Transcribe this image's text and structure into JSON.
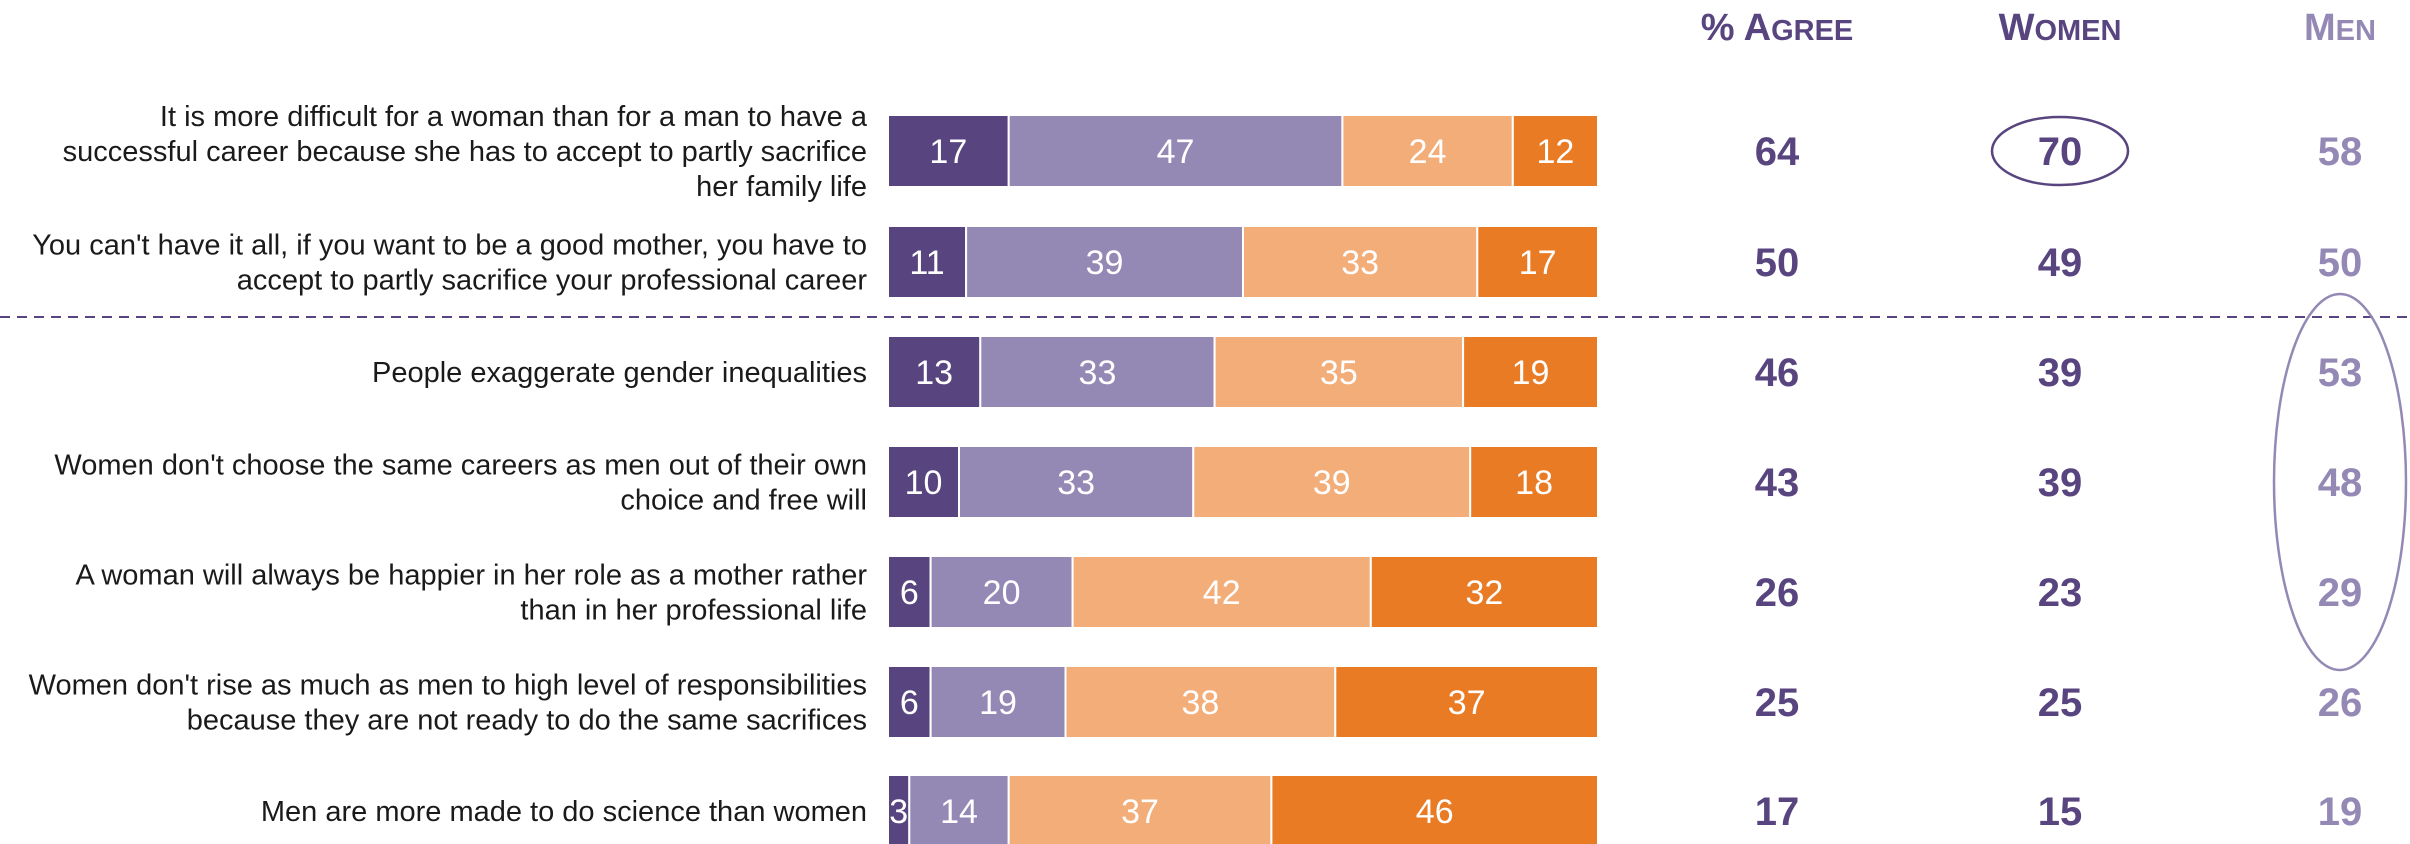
{
  "chart_data": {
    "type": "bar",
    "stacked": true,
    "orientation": "horizontal",
    "categories": [
      "It is more difficult for a woman than for a man to have a successful career because she has to accept to partly sacrifice her family life",
      "You can't have it all, if you want to be a good mother, you have to accept to partly sacrifice your professional career",
      "People exaggerate gender inequalities",
      "Women don't choose the same careers as men out of their own choice and free will",
      "A woman will always be happier in her role as a mother rather than in her professional life",
      "Women don't rise as much as men to high level of responsibilities because they are not ready to do the same sacrifices",
      "Men are more made to do science than women"
    ],
    "category_lines": [
      [
        "It is more difficult for a woman than for a man to have a",
        "successful career because she has to accept to partly sacrifice",
        "her family life"
      ],
      [
        "You can't have it all, if you want to be a good mother, you have to",
        "accept to partly sacrifice your professional career"
      ],
      [
        "People exaggerate gender inequalities"
      ],
      [
        "Women don't choose the same careers as men out of their own",
        "choice and free will"
      ],
      [
        "A woman will always be happier in her role as a mother rather",
        "than in her professional life"
      ],
      [
        "Women don't rise as much as men to high level of responsibilities",
        "because they are not ready to do the same sacrifices"
      ],
      [
        "Men are more made to do science than women"
      ]
    ],
    "series": [
      {
        "values": [
          17,
          11,
          13,
          10,
          6,
          6,
          3
        ],
        "color": "#58457f"
      },
      {
        "values": [
          47,
          39,
          33,
          33,
          20,
          19,
          14
        ],
        "color": "#9488b5"
      },
      {
        "values": [
          24,
          33,
          35,
          39,
          42,
          38,
          37
        ],
        "color": "#f2ad78"
      },
      {
        "values": [
          12,
          17,
          19,
          18,
          32,
          37,
          46
        ],
        "color": "#e97b25"
      }
    ],
    "xlim": [
      0,
      100
    ],
    "columns": [
      {
        "header": "% Agree",
        "values": [
          64,
          50,
          46,
          43,
          26,
          25,
          17
        ],
        "color": "#58457f"
      },
      {
        "header": "Women",
        "values": [
          70,
          49,
          39,
          39,
          23,
          25,
          15
        ],
        "color": "#58457f",
        "highlight_rows": [
          0
        ]
      },
      {
        "header": "Men",
        "values": [
          58,
          50,
          53,
          48,
          29,
          26,
          19
        ],
        "color": "#9488b5",
        "highlight_rows": [
          2,
          3,
          4
        ]
      }
    ],
    "divider_after_row": 1,
    "divider_color": "#58457f"
  }
}
